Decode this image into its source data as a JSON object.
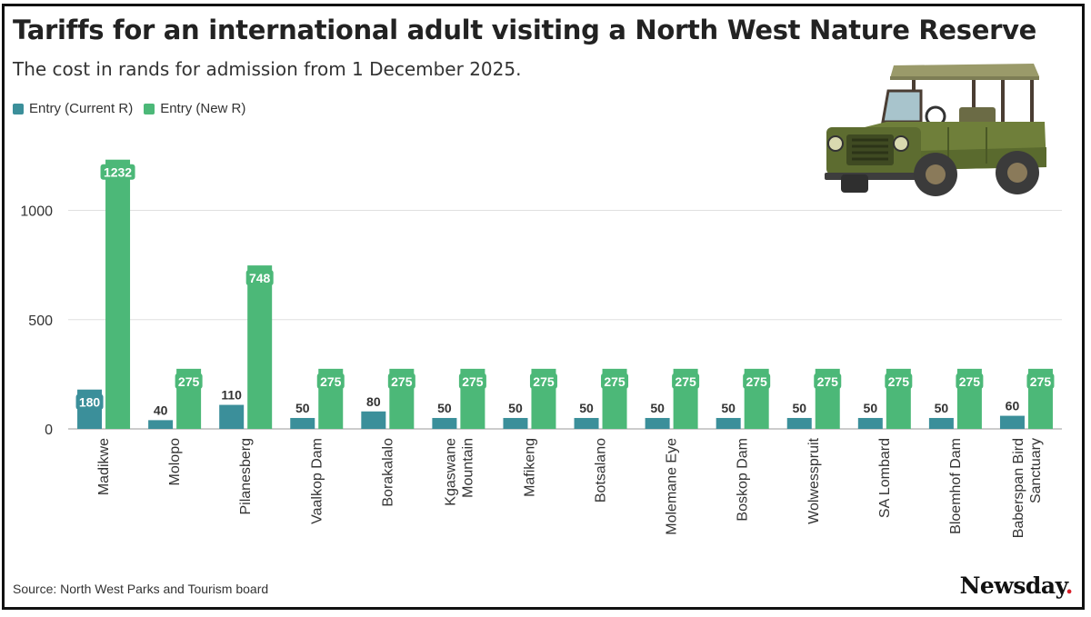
{
  "title": "Tariffs for an international adult visiting a North West Nature Reserve",
  "subtitle": "The cost in rands for admission from 1 December 2025.",
  "source": "Source: North West Parks and Tourism board",
  "brand": {
    "name": "Newsday",
    "dot": "."
  },
  "colors": {
    "current": "#3b8f9a",
    "new": "#4cb878",
    "grid": "#e0e0e0",
    "axis_text": "#333333"
  },
  "illustration": {
    "icon": "safari-jeep-icon"
  },
  "chart_data": {
    "type": "bar",
    "title": "Tariffs for an international adult visiting a North West Nature Reserve",
    "subtitle": "The cost in rands for admission from 1 December 2025.",
    "xlabel": "",
    "ylabel": "",
    "ylim": [
      0,
      1300
    ],
    "yticks": [
      0,
      500,
      1000
    ],
    "grid": true,
    "legend": "top-left",
    "categories": [
      "Madikwe",
      "Molopo",
      "Pilanesberg",
      "Vaalkop Dam",
      "Borakalalo",
      "Kgaswane Mountain",
      "Mafikeng",
      "Botsalano",
      "Molemane Eye",
      "Boskop Dam",
      "Wolwesspruit",
      "SA Lombard",
      "Bloemhof Dam",
      "Baberspan Bird Sanctuary"
    ],
    "series": [
      {
        "name": "Entry (Current R)",
        "values": [
          180,
          40,
          110,
          50,
          80,
          50,
          50,
          50,
          50,
          50,
          50,
          50,
          50,
          60
        ]
      },
      {
        "name": "Entry (New R)",
        "values": [
          1232,
          275,
          748,
          275,
          275,
          275,
          275,
          275,
          275,
          275,
          275,
          275,
          275,
          275
        ]
      }
    ]
  }
}
